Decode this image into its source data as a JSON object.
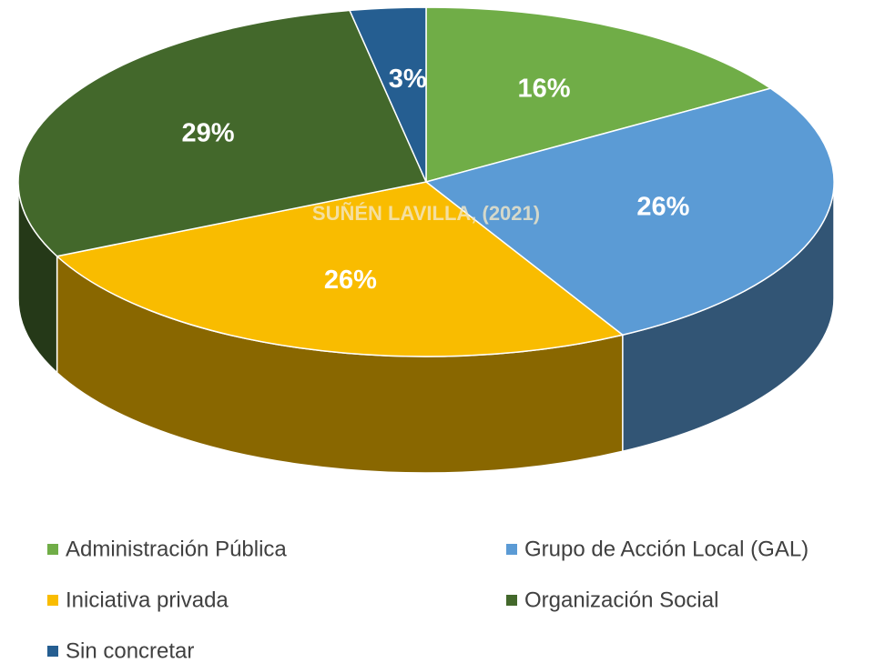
{
  "chart_data": {
    "type": "pie",
    "categories": [
      "Administración Pública",
      "Grupo de Acción Local (GAL)",
      "Iniciativa privada",
      "Organización Social",
      "Sin concretar"
    ],
    "values": [
      16,
      26,
      26,
      29,
      3
    ],
    "value_labels": [
      "16%",
      "26%",
      "26%",
      "29%",
      "3%"
    ],
    "colors": [
      "#70ad47",
      "#5b9bd5",
      "#f9bc00",
      "#43682b",
      "#255e91"
    ],
    "legend": "bottom",
    "watermark": "SUÑÉN LAVILLA, (2021)"
  }
}
